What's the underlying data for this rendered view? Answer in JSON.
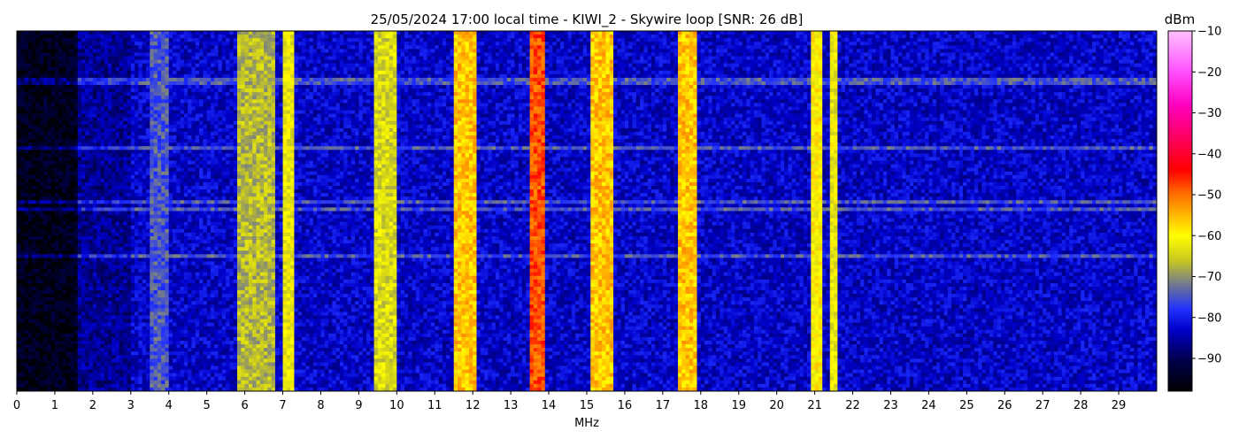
{
  "chart_data": {
    "type": "heatmap",
    "title": "25/05/2024 17:00 local time - KIWI_2 - Skywire loop [SNR: 26 dB]",
    "xlabel": "MHz",
    "ylabel": "",
    "xlim": [
      0,
      30
    ],
    "x_ticks": [
      "0",
      "1",
      "2",
      "3",
      "4",
      "5",
      "6",
      "7",
      "8",
      "9",
      "10",
      "11",
      "12",
      "13",
      "14",
      "15",
      "16",
      "17",
      "18",
      "19",
      "20",
      "21",
      "22",
      "23",
      "24",
      "25",
      "26",
      "27",
      "28",
      "29"
    ],
    "colorbar": {
      "label": "dBm",
      "range": [
        -98,
        -10
      ],
      "ticks": [
        "−10",
        "−20",
        "−30",
        "−40",
        "−50",
        "−60",
        "−70",
        "−80",
        "−90"
      ],
      "tick_values": [
        -10,
        -20,
        -30,
        -40,
        -50,
        -60,
        -70,
        -80,
        -90
      ],
      "colormap": [
        {
          "value": -98,
          "color": "#000000"
        },
        {
          "value": -90,
          "color": "#000050"
        },
        {
          "value": -83,
          "color": "#0000c8"
        },
        {
          "value": -78,
          "color": "#2030ff"
        },
        {
          "value": -72,
          "color": "#707890"
        },
        {
          "value": -66,
          "color": "#c8c820"
        },
        {
          "value": -60,
          "color": "#ffff00"
        },
        {
          "value": -50,
          "color": "#ff7000"
        },
        {
          "value": -44,
          "color": "#ff0000"
        },
        {
          "value": -36,
          "color": "#ff0060"
        },
        {
          "value": -28,
          "color": "#ff00c0"
        },
        {
          "value": -20,
          "color": "#ff50ff"
        },
        {
          "value": -10,
          "color": "#ffc0ff"
        }
      ]
    },
    "strong_signal_bands_mhz": [
      {
        "from": 3.5,
        "to": 4.0,
        "level_dbm": -75
      },
      {
        "from": 5.8,
        "to": 6.8,
        "level_dbm": -67
      },
      {
        "from": 7.0,
        "to": 7.3,
        "level_dbm": -62
      },
      {
        "from": 9.4,
        "to": 9.95,
        "level_dbm": -64
      },
      {
        "from": 11.5,
        "to": 12.1,
        "level_dbm": -56
      },
      {
        "from": 13.55,
        "to": 13.85,
        "level_dbm": -48
      },
      {
        "from": 15.1,
        "to": 15.7,
        "level_dbm": -56
      },
      {
        "from": 17.45,
        "to": 17.95,
        "level_dbm": -56
      },
      {
        "from": 20.95,
        "to": 21.15,
        "level_dbm": -60
      },
      {
        "from": 21.4,
        "to": 21.6,
        "level_dbm": -62
      }
    ],
    "grid": false,
    "legend": "colorbar-right"
  }
}
